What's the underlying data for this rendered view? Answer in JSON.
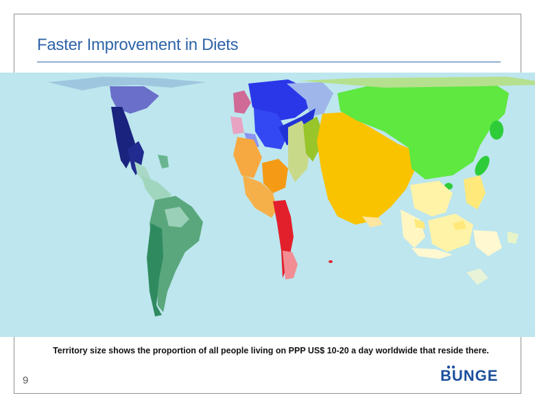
{
  "slide": {
    "title": "Faster Improvement in Diets",
    "caption": "Territory size shows the proportion of all people living on PPP US$ 10-20 a day worldwide that reside there.",
    "page_number": "9",
    "logo_text": "BUNGE"
  },
  "map": {
    "icon": "cartogram-world-map",
    "ocean_color": "#bde6ee",
    "region_colors": {
      "north_america": "#1a237e",
      "south_america": "#5aa77d",
      "western_europe": "#2a37e8",
      "africa": "#f5a02a",
      "middle_east": "#e01b24",
      "south_asia": "#f9c300",
      "east_asia": "#5ee840",
      "asia_pacific": "#fff3a8"
    }
  }
}
